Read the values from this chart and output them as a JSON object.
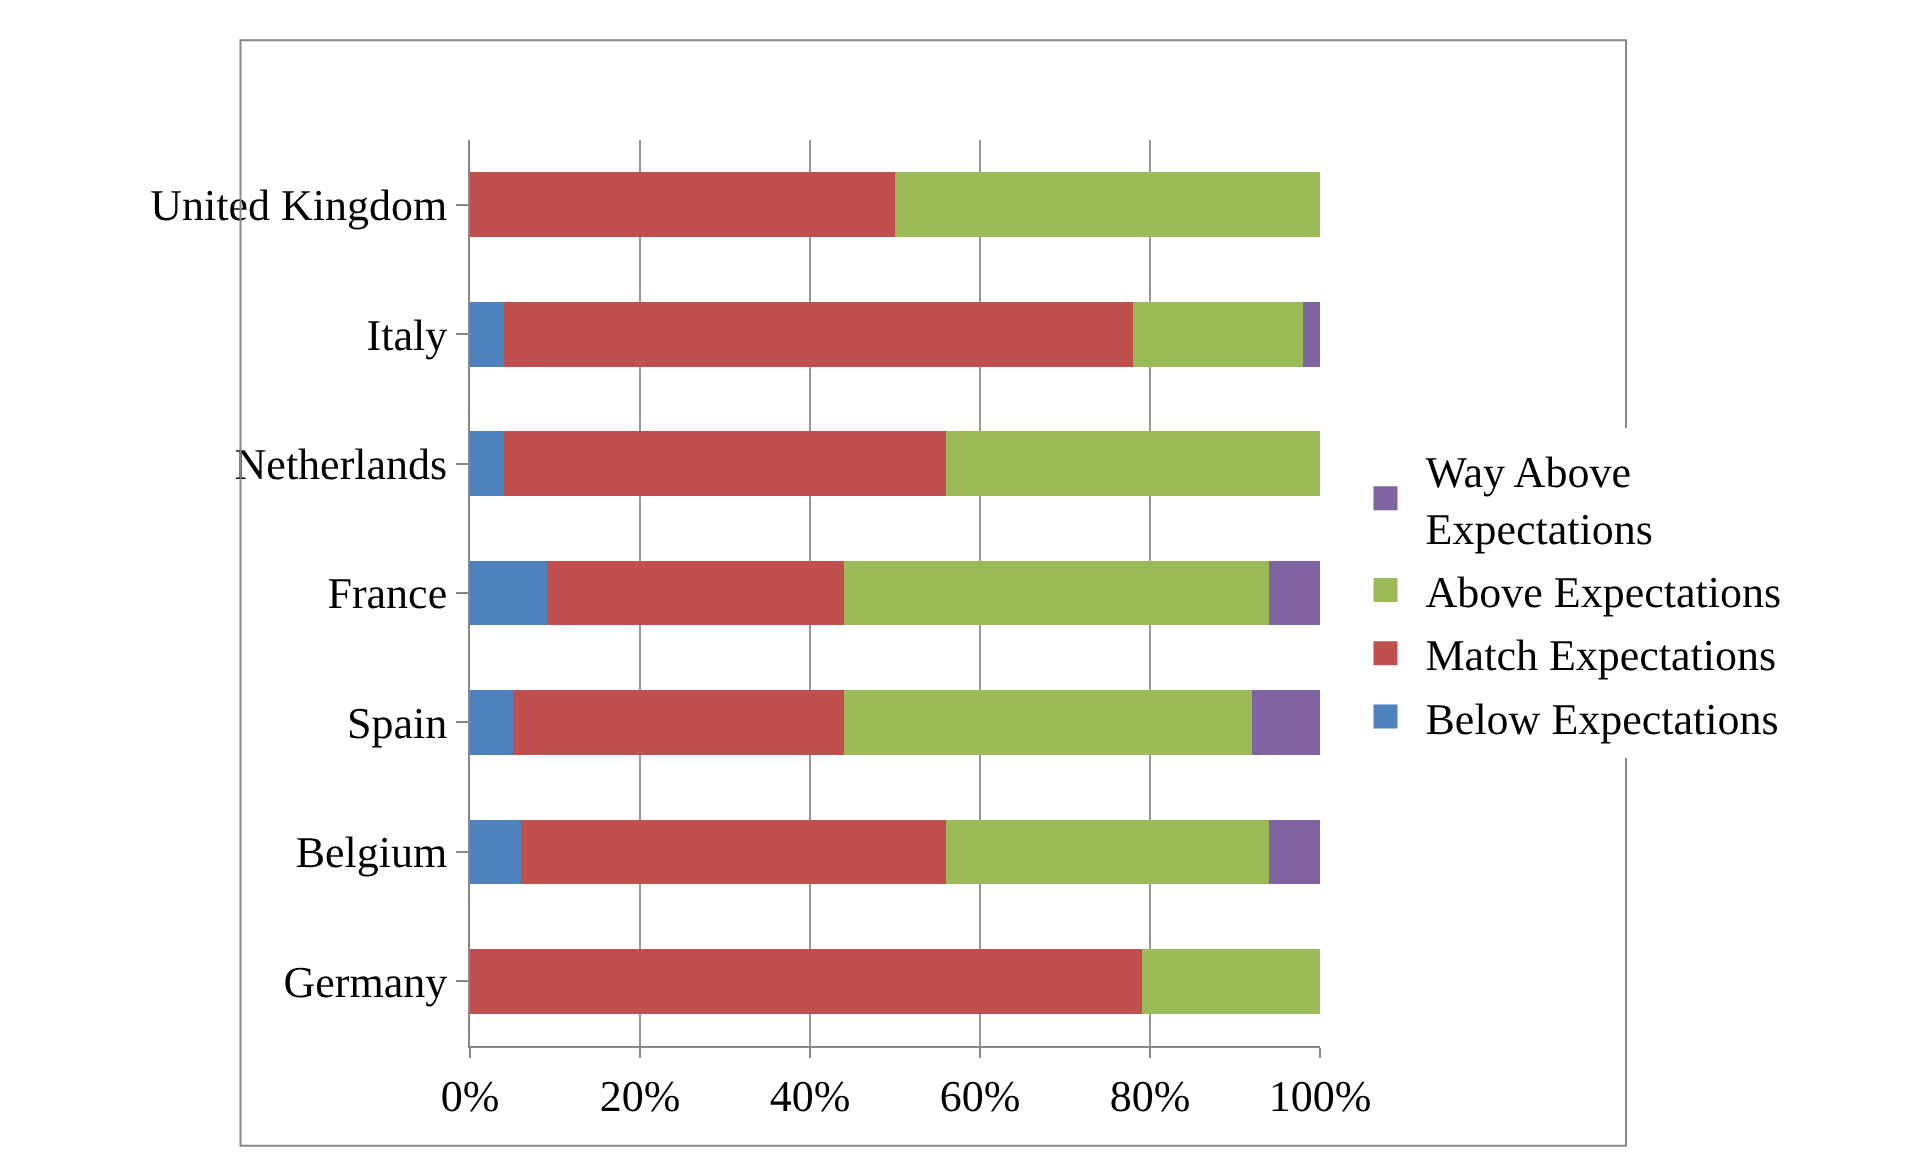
{
  "chart_data": {
    "type": "bar",
    "orientation": "horizontal",
    "stacked": true,
    "categories": [
      "United Kingdom",
      "Italy",
      "Netherlands",
      "France",
      "Spain",
      "Belgium",
      "Germany"
    ],
    "series": [
      {
        "name": "Below Expectations",
        "color": "#4f81bd",
        "values": [
          0,
          4,
          4,
          9,
          5,
          6,
          0
        ]
      },
      {
        "name": "Match Expectations",
        "color": "#c0504d",
        "values": [
          50,
          74,
          52,
          35,
          39,
          50,
          79
        ]
      },
      {
        "name": "Above Expectations",
        "color": "#9bbb59",
        "values": [
          50,
          20,
          44,
          50,
          48,
          38,
          21
        ]
      },
      {
        "name": "Way Above Expectations",
        "color": "#8064a2",
        "values": [
          0,
          2,
          0,
          6,
          8,
          6,
          0
        ]
      }
    ],
    "xlim": [
      0,
      100
    ],
    "xticks": [
      {
        "value": 0,
        "label": "0%"
      },
      {
        "value": 20,
        "label": "20%"
      },
      {
        "value": 40,
        "label": "40%"
      },
      {
        "value": 60,
        "label": "60%"
      },
      {
        "value": 80,
        "label": "80%"
      },
      {
        "value": 100,
        "label": "100%"
      }
    ],
    "grid": "x",
    "legend": "right"
  }
}
